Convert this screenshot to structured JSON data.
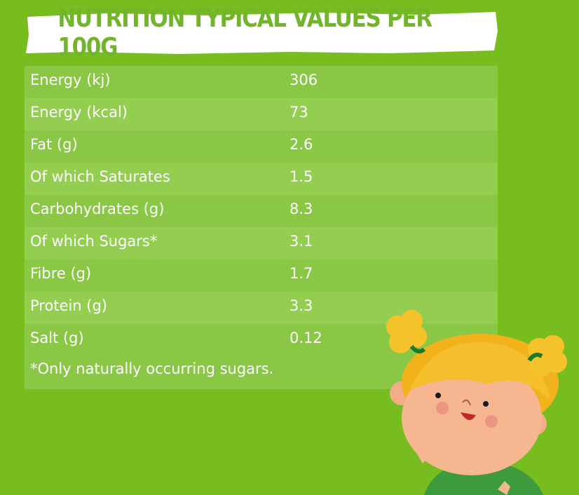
{
  "title": "NUTRITION TYPICAL VALUES PER 100G",
  "rows": [
    {
      "label": "Energy (kj)",
      "value": "306"
    },
    {
      "label": "Energy (kcal)",
      "value": "73"
    },
    {
      "label": "Fat (g)",
      "value": "2.6"
    },
    {
      "label": "Of which Saturates",
      "value": "1.5"
    },
    {
      "label": "Carbohydrates (g)",
      "value": "8.3"
    },
    {
      "label": "Of which Sugars*",
      "value": "3.1"
    },
    {
      "label": "Fibre (g)",
      "value": "1.7"
    },
    {
      "label": "Protein (g)",
      "value": "3.3"
    },
    {
      "label": "Salt (g)",
      "value": "0.12"
    }
  ],
  "footnote": "*Only naturally occurring sugars.",
  "colors": {
    "background": "#78bd1f",
    "table": "#8ac744",
    "table_alt_row": "#93ce51",
    "title_text": "#72b52a",
    "banner": "#ffffff"
  },
  "illustration": "girl-mascot"
}
